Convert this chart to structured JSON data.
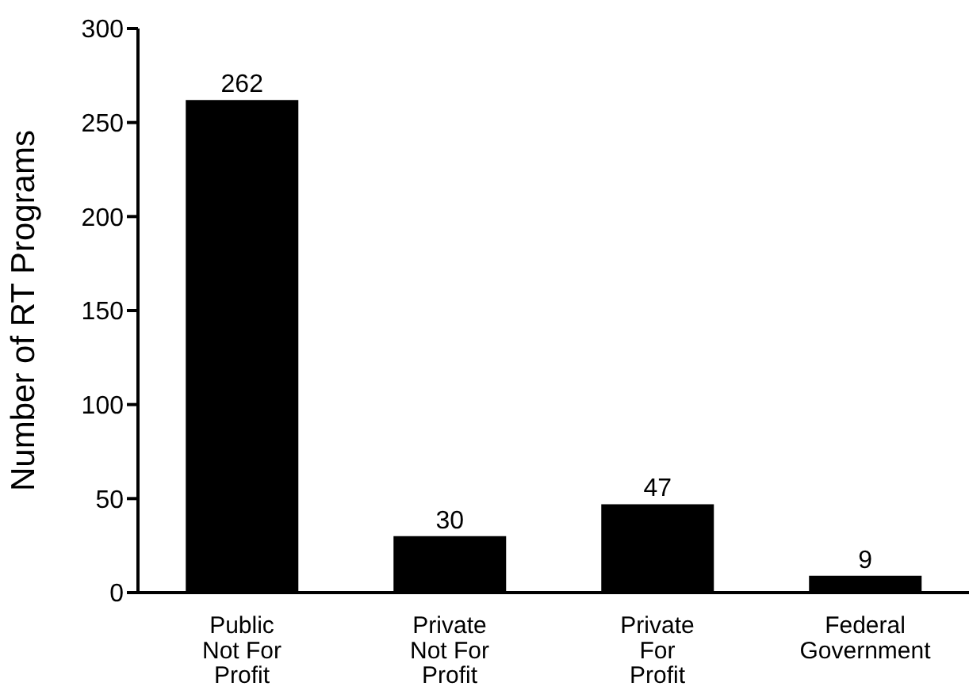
{
  "chart_data": {
    "type": "bar",
    "ylabel": "Number of RT Programs",
    "categories": [
      "Public Not For Profit",
      "Private Not For Profit",
      "Private For Profit",
      "Federal Government"
    ],
    "values": [
      262,
      30,
      47,
      9
    ],
    "color": "#000000",
    "ylim": [
      0,
      300
    ],
    "yticks": [
      0,
      50,
      100,
      150,
      200,
      250,
      300
    ],
    "grid": false,
    "data_labels": true
  }
}
